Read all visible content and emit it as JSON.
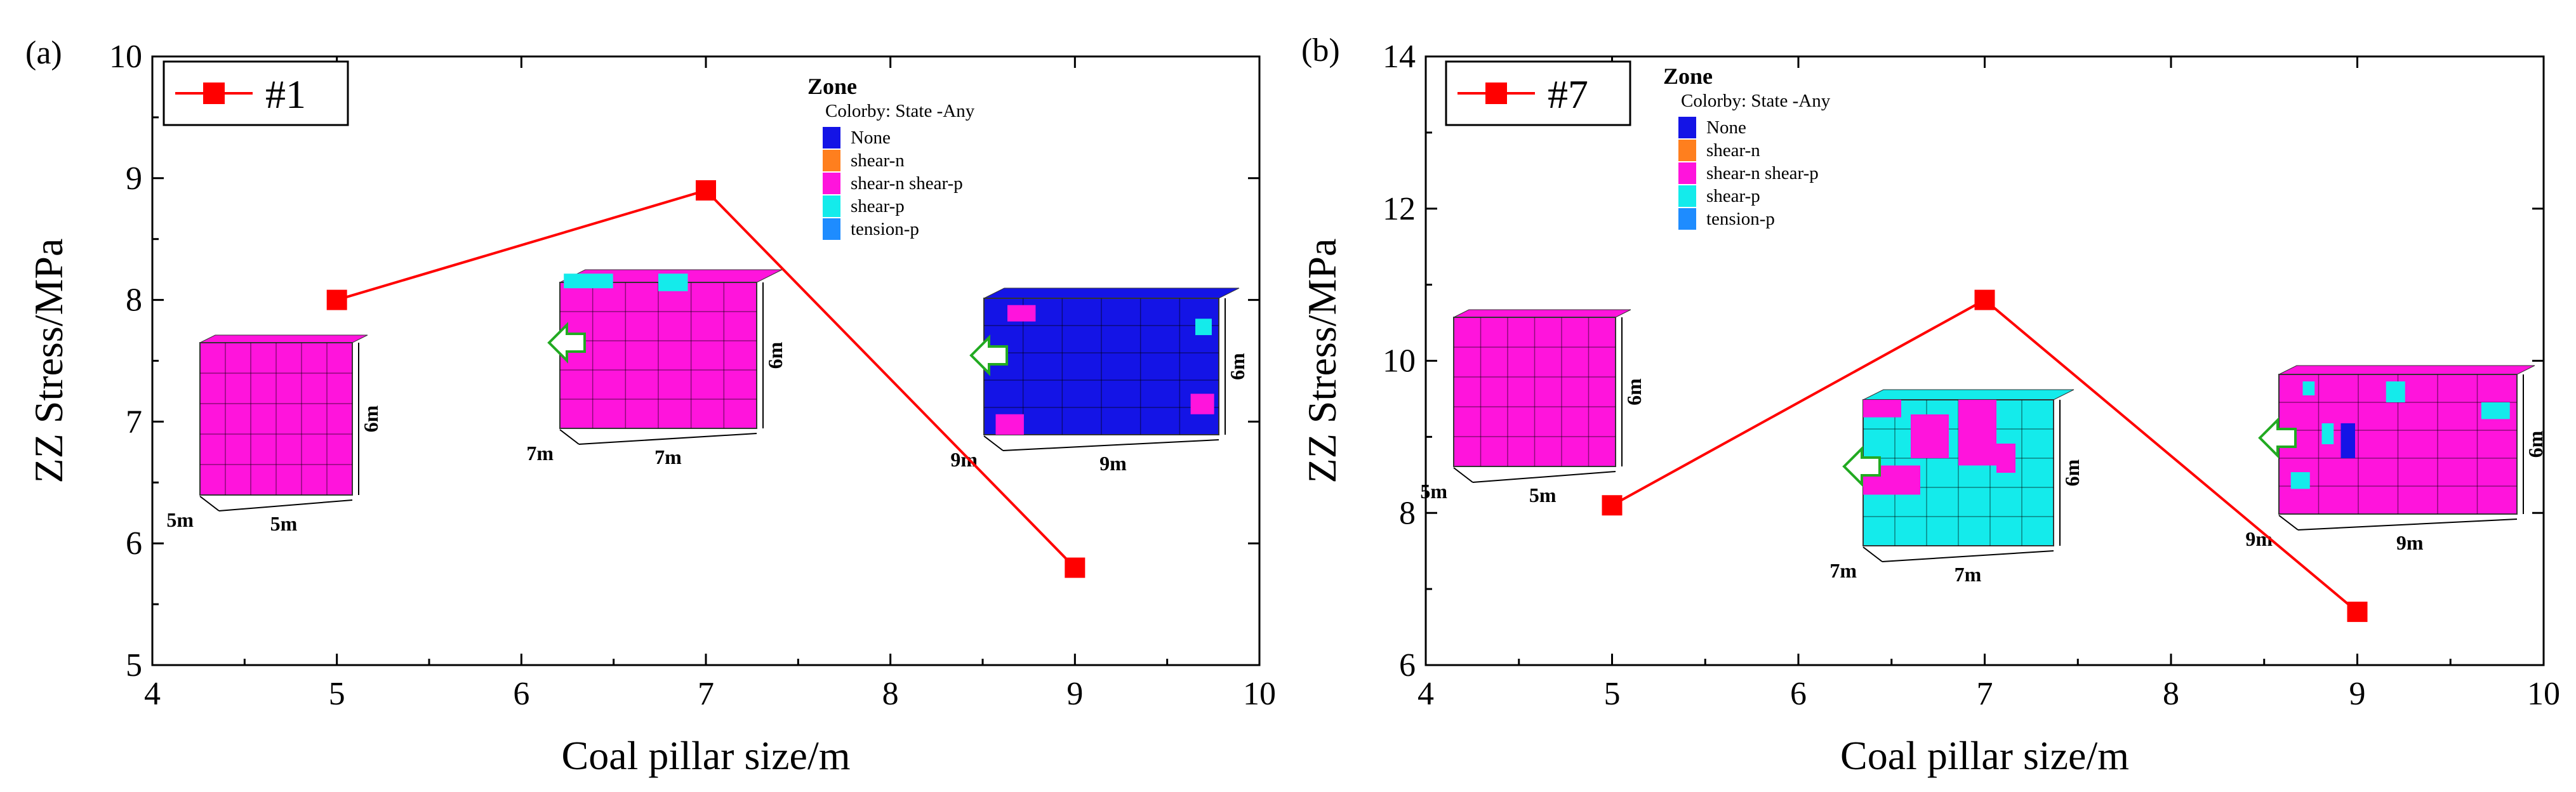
{
  "zone_legend": {
    "title": "Zone",
    "subtitle": "Colorby: State  -Any",
    "items": [
      {
        "label": "None",
        "color": "#1414e6"
      },
      {
        "label": "shear-n",
        "color": "#ff7f1e"
      },
      {
        "label": "shear-n shear-p",
        "color": "#ff14dc"
      },
      {
        "label": "shear-p",
        "color": "#14ebeb"
      },
      {
        "label": "tension-p",
        "color": "#1e8cff"
      }
    ]
  },
  "colors": {
    "series": "#ff0000",
    "none": "#1414e6",
    "shear_n_shear_p": "#ff14dc",
    "shear_p": "#14ebeb",
    "arrow": "#22aa22"
  },
  "chart_data": [
    {
      "type": "line",
      "panel_label": "(a)",
      "xlabel": "Coal pillar size/m",
      "ylabel": "ZZ Stress/MPa",
      "xlim": [
        4,
        10
      ],
      "ylim": [
        5,
        10
      ],
      "xticks": [
        "4",
        "5",
        "6",
        "7",
        "8",
        "9",
        "10"
      ],
      "yticks": [
        "5",
        "6",
        "7",
        "8",
        "9",
        "10"
      ],
      "legend": "#1",
      "series": [
        {
          "name": "#1",
          "x": [
            5,
            7,
            9
          ],
          "y": [
            8.0,
            8.9,
            5.8
          ]
        }
      ],
      "models": [
        {
          "size": "5m",
          "width": "5m",
          "height": "6m",
          "dominant_state": "shear-n shear-p"
        },
        {
          "size": "7m",
          "width": "7m",
          "height": "6m",
          "dominant_state": "shear-n shear-p"
        },
        {
          "size": "9m",
          "width": "9m",
          "height": "6m",
          "dominant_state": "None"
        }
      ]
    },
    {
      "type": "line",
      "panel_label": "(b)",
      "xlabel": "Coal pillar size/m",
      "ylabel": "ZZ Stress/MPa",
      "xlim": [
        4,
        10
      ],
      "ylim": [
        6,
        14
      ],
      "xticks": [
        "4",
        "5",
        "6",
        "7",
        "8",
        "9",
        "10"
      ],
      "yticks": [
        "6",
        "8",
        "10",
        "12",
        "14"
      ],
      "legend": "#7",
      "series": [
        {
          "name": "#7",
          "x": [
            5,
            7,
            9
          ],
          "y": [
            8.1,
            10.8,
            6.7
          ]
        }
      ],
      "models": [
        {
          "size": "5m",
          "width": "5m",
          "height": "6m",
          "dominant_state": "shear-n shear-p"
        },
        {
          "size": "7m",
          "width": "7m",
          "height": "6m",
          "dominant_state": "shear-p"
        },
        {
          "size": "9m",
          "width": "9m",
          "height": "6m",
          "dominant_state": "shear-n shear-p"
        }
      ]
    }
  ]
}
